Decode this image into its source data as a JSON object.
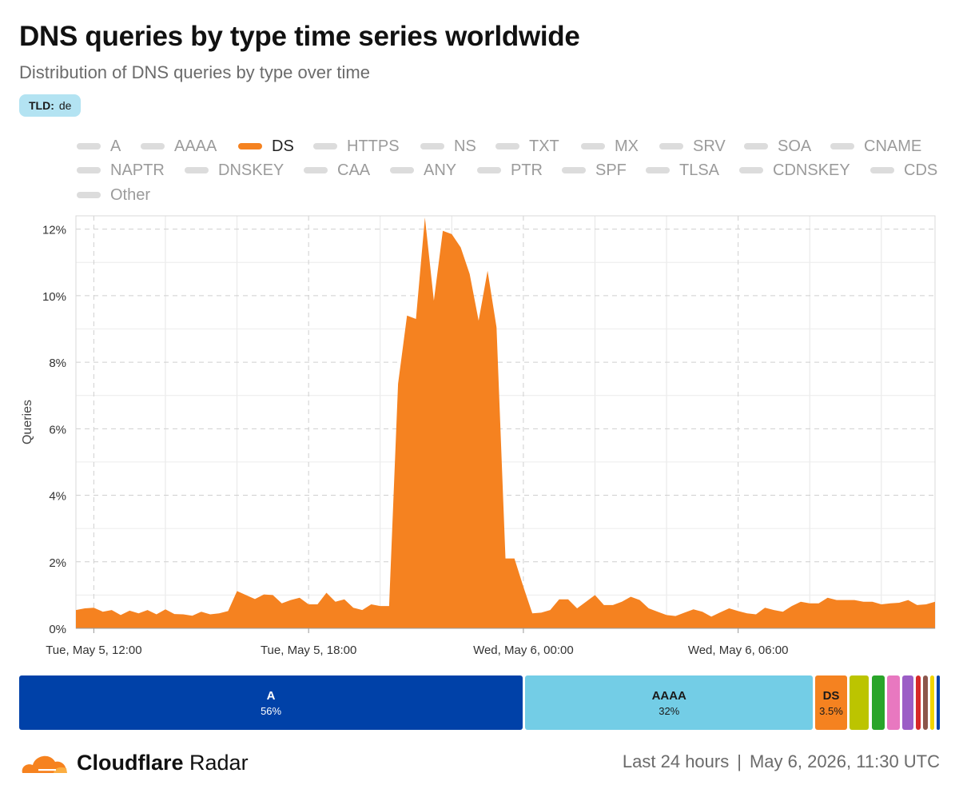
{
  "header": {
    "title": "DNS queries by type time series worldwide",
    "subtitle": "Distribution of DNS queries by type over time"
  },
  "filter": {
    "key": "TLD:",
    "value": "de"
  },
  "legend": {
    "items": [
      "A",
      "AAAA",
      "DS",
      "HTTPS",
      "NS",
      "TXT",
      "MX",
      "SRV",
      "SOA",
      "CNAME",
      "NAPTR",
      "DNSKEY",
      "CAA",
      "ANY",
      "PTR",
      "SPF",
      "TLSA",
      "CDNSKEY",
      "CDS",
      "Other"
    ],
    "active": "DS",
    "active_color": "#f58220",
    "inactive_color": "#dcdcdc"
  },
  "chart_data": {
    "type": "area",
    "ylabel": "Queries",
    "ylim": [
      0,
      12.4
    ],
    "yticks": [
      0,
      2,
      4,
      6,
      8,
      10,
      12
    ],
    "ytick_labels": [
      "0%",
      "2%",
      "4%",
      "6%",
      "8%",
      "10%",
      "12%"
    ],
    "xlim": [
      "2026-05-05T11:30",
      "2026-05-06T11:30"
    ],
    "xticks": [
      "2026-05-05T12:00",
      "2026-05-05T18:00",
      "2026-05-06T00:00",
      "2026-05-06T06:00"
    ],
    "xtick_labels": [
      "Tue, May 5, 12:00",
      "Tue, May 5, 18:00",
      "Wed, May 6, 00:00",
      "Wed, May 6, 06:00"
    ],
    "grid": true,
    "series": [
      {
        "name": "DS",
        "color": "#f58220",
        "x": [
          "2026-05-05T11:30",
          "2026-05-05T11:45",
          "2026-05-05T12:00",
          "2026-05-05T12:15",
          "2026-05-05T12:30",
          "2026-05-05T12:45",
          "2026-05-05T13:00",
          "2026-05-05T13:15",
          "2026-05-05T13:30",
          "2026-05-05T13:45",
          "2026-05-05T14:00",
          "2026-05-05T14:15",
          "2026-05-05T14:30",
          "2026-05-05T14:45",
          "2026-05-05T15:00",
          "2026-05-05T15:15",
          "2026-05-05T15:30",
          "2026-05-05T15:45",
          "2026-05-05T16:00",
          "2026-05-05T16:15",
          "2026-05-05T16:30",
          "2026-05-05T16:45",
          "2026-05-05T17:00",
          "2026-05-05T17:15",
          "2026-05-05T17:30",
          "2026-05-05T17:45",
          "2026-05-05T18:00",
          "2026-05-05T18:15",
          "2026-05-05T18:30",
          "2026-05-05T18:45",
          "2026-05-05T19:00",
          "2026-05-05T19:15",
          "2026-05-05T19:30",
          "2026-05-05T19:45",
          "2026-05-05T20:00",
          "2026-05-05T20:15",
          "2026-05-05T20:30",
          "2026-05-05T20:45",
          "2026-05-05T21:00",
          "2026-05-05T21:15",
          "2026-05-05T21:30",
          "2026-05-05T21:45",
          "2026-05-05T22:00",
          "2026-05-05T22:15",
          "2026-05-05T22:30",
          "2026-05-05T22:45",
          "2026-05-05T23:00",
          "2026-05-05T23:15",
          "2026-05-05T23:30",
          "2026-05-05T23:45",
          "2026-05-06T00:00",
          "2026-05-06T00:15",
          "2026-05-06T00:30",
          "2026-05-06T00:45",
          "2026-05-06T01:00",
          "2026-05-06T01:15",
          "2026-05-06T01:30",
          "2026-05-06T01:45",
          "2026-05-06T02:00",
          "2026-05-06T02:15",
          "2026-05-06T02:30",
          "2026-05-06T02:45",
          "2026-05-06T03:00",
          "2026-05-06T03:15",
          "2026-05-06T03:30",
          "2026-05-06T03:45",
          "2026-05-06T04:00",
          "2026-05-06T04:15",
          "2026-05-06T04:30",
          "2026-05-06T04:45",
          "2026-05-06T05:00",
          "2026-05-06T05:15",
          "2026-05-06T05:30",
          "2026-05-06T05:45",
          "2026-05-06T06:00",
          "2026-05-06T06:15",
          "2026-05-06T06:30",
          "2026-05-06T06:45",
          "2026-05-06T07:00",
          "2026-05-06T07:15",
          "2026-05-06T07:30",
          "2026-05-06T07:45",
          "2026-05-06T08:00",
          "2026-05-06T08:15",
          "2026-05-06T08:30",
          "2026-05-06T08:45",
          "2026-05-06T09:00",
          "2026-05-06T09:15",
          "2026-05-06T09:30",
          "2026-05-06T09:45",
          "2026-05-06T10:00",
          "2026-05-06T10:15",
          "2026-05-06T10:30",
          "2026-05-06T10:45",
          "2026-05-06T11:00",
          "2026-05-06T11:15",
          "2026-05-06T11:30"
        ],
        "values": [
          0.55,
          0.6,
          0.62,
          0.5,
          0.55,
          0.4,
          0.53,
          0.45,
          0.55,
          0.42,
          0.57,
          0.43,
          0.42,
          0.38,
          0.5,
          0.42,
          0.45,
          0.52,
          1.12,
          1.0,
          0.88,
          1.02,
          1.0,
          0.75,
          0.85,
          0.92,
          0.72,
          0.72,
          1.07,
          0.8,
          0.87,
          0.62,
          0.55,
          0.72,
          0.67,
          0.67,
          7.35,
          9.4,
          9.3,
          12.35,
          9.85,
          11.95,
          11.85,
          11.45,
          10.65,
          9.25,
          10.75,
          9.05,
          2.1,
          2.1,
          1.25,
          0.45,
          0.47,
          0.55,
          0.87,
          0.87,
          0.6,
          0.8,
          1.0,
          0.7,
          0.7,
          0.8,
          0.95,
          0.85,
          0.6,
          0.5,
          0.4,
          0.37,
          0.47,
          0.57,
          0.5,
          0.35,
          0.48,
          0.6,
          0.52,
          0.45,
          0.42,
          0.62,
          0.55,
          0.5,
          0.67,
          0.8,
          0.75,
          0.75,
          0.92,
          0.85,
          0.85,
          0.85,
          0.8,
          0.8,
          0.72,
          0.75,
          0.77,
          0.85,
          0.7,
          0.72,
          0.8
        ]
      }
    ]
  },
  "share_bar": {
    "segments": [
      {
        "name": "A",
        "pct_label": "56%",
        "value": 56,
        "color": "#0041a8",
        "text_color": "#ffffff"
      },
      {
        "name": "AAAA",
        "pct_label": "32%",
        "value": 32,
        "color": "#73cde6",
        "text_color": "#1a1a1a"
      },
      {
        "name": "DS",
        "pct_label": "3.5%",
        "value": 3.5,
        "color": "#f58220",
        "text_color": "#1a1a1a"
      },
      {
        "value": 2.2,
        "color": "#bcc400"
      },
      {
        "value": 1.5,
        "color": "#2aa52a"
      },
      {
        "value": 1.4,
        "color": "#e878c0"
      },
      {
        "value": 1.2,
        "color": "#9b5ec6"
      },
      {
        "value": 0.6,
        "color": "#d62828"
      },
      {
        "value": 0.5,
        "color": "#8c564b"
      },
      {
        "value": 0.45,
        "color": "#f2d400"
      },
      {
        "value": 0.35,
        "color": "#0041a8"
      }
    ]
  },
  "footer": {
    "brand_bold": "Cloudflare",
    "brand_light": "Radar",
    "period": "Last 24 hours",
    "separator": "|",
    "timestamp": "May 6, 2026, 11:30 UTC"
  }
}
